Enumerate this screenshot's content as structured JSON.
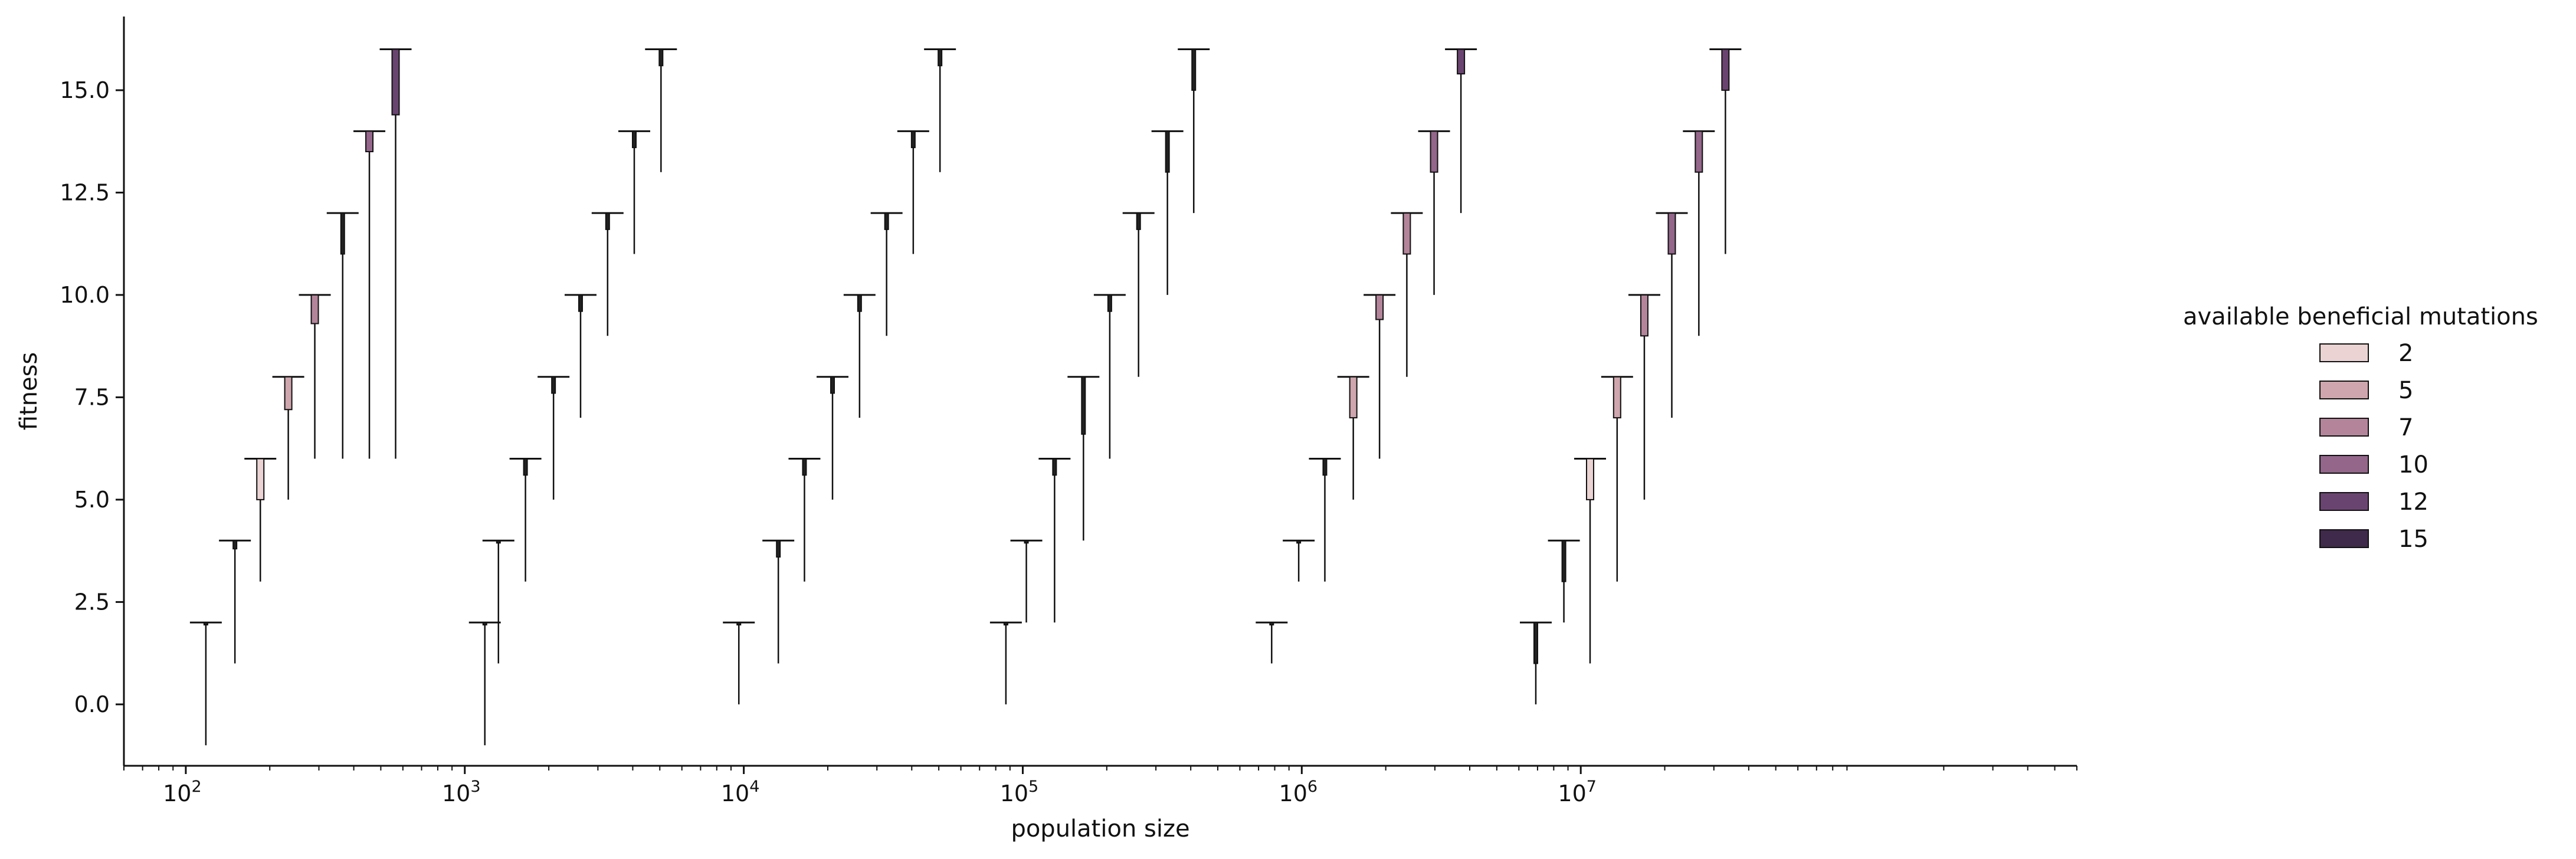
{
  "chart_data": {
    "type": "violin",
    "xlabel": "population size",
    "ylabel": "fitness",
    "xscale": "log",
    "xlim": [
      60,
      600000000
    ],
    "ylim": [
      -1.5,
      16.8
    ],
    "x_tick_labels": [
      {
        "base": "10",
        "exp": "2"
      },
      {
        "base": "10",
        "exp": "3"
      },
      {
        "base": "10",
        "exp": "4"
      },
      {
        "base": "10",
        "exp": "5"
      },
      {
        "base": "10",
        "exp": "6"
      },
      {
        "base": "10",
        "exp": "7"
      }
    ],
    "x_ticks": [
      100,
      1000,
      10000,
      100000,
      1000000,
      10000000
    ],
    "y_ticks": [
      0.0,
      2.5,
      5.0,
      7.5,
      10.0,
      12.5,
      15.0
    ],
    "y_tick_labels": [
      "0.0",
      "2.5",
      "5.0",
      "7.5",
      "10.0",
      "12.5",
      "15.0"
    ],
    "grid": false,
    "legend": {
      "title": "available beneficial mutations",
      "placement": "right",
      "entries": [
        {
          "label": "2",
          "color": "#ead3d2"
        },
        {
          "label": "5",
          "color": "#cfa6ad"
        },
        {
          "label": "7",
          "color": "#b4859a"
        },
        {
          "label": "10",
          "color": "#93668a"
        },
        {
          "label": "12",
          "color": "#6a4470"
        },
        {
          "label": "15",
          "color": "#3f2a4b"
        }
      ]
    },
    "groups": [
      {
        "violins": [
          {
            "x": 118,
            "max": 2,
            "min": -1,
            "box": [
              2,
              2
            ]
          },
          {
            "x": 150,
            "max": 4,
            "min": 1,
            "box": [
              3.8,
              4
            ]
          },
          {
            "x": 185,
            "max": 6,
            "min": 3,
            "box": [
              5,
              6
            ],
            "color": "#ead3d2"
          },
          {
            "x": 233,
            "max": 8,
            "min": 5,
            "box": [
              7.2,
              8
            ],
            "color": "#cfa6ad"
          },
          {
            "x": 290,
            "max": 10,
            "min": 6,
            "box": [
              9.3,
              10
            ],
            "color": "#b4859a"
          },
          {
            "x": 365,
            "max": 12,
            "min": 6,
            "box": [
              11,
              12
            ]
          },
          {
            "x": 455,
            "max": 14,
            "min": 6,
            "box": [
              13.5,
              14
            ],
            "color": "#93668a"
          },
          {
            "x": 565,
            "max": 16,
            "min": 6,
            "box": [
              14.4,
              16
            ],
            "color": "#6a4470"
          }
        ]
      },
      {
        "violins": [
          {
            "x": 1180,
            "max": 2,
            "min": -1,
            "box": [
              2,
              2
            ]
          },
          {
            "x": 1320,
            "max": 4,
            "min": 1,
            "box": [
              4,
              4
            ]
          },
          {
            "x": 1650,
            "max": 6,
            "min": 3,
            "box": [
              5.6,
              6
            ]
          },
          {
            "x": 2080,
            "max": 8,
            "min": 5,
            "box": [
              7.6,
              8
            ]
          },
          {
            "x": 2600,
            "max": 10,
            "min": 7,
            "box": [
              9.6,
              10
            ]
          },
          {
            "x": 3250,
            "max": 12,
            "min": 9,
            "box": [
              11.6,
              12
            ]
          },
          {
            "x": 4050,
            "max": 14,
            "min": 11,
            "box": [
              13.6,
              14
            ]
          },
          {
            "x": 5050,
            "max": 16,
            "min": 13,
            "box": [
              15.6,
              16
            ]
          }
        ]
      },
      {
        "violins": [
          {
            "x": 9600,
            "max": 2,
            "min": 0,
            "box": [
              2,
              2
            ]
          },
          {
            "x": 13300,
            "max": 4,
            "min": 1,
            "box": [
              3.6,
              4
            ]
          },
          {
            "x": 16500,
            "max": 6,
            "min": 3,
            "box": [
              5.6,
              6
            ]
          },
          {
            "x": 20800,
            "max": 8,
            "min": 5,
            "box": [
              7.6,
              8
            ]
          },
          {
            "x": 26000,
            "max": 10,
            "min": 7,
            "box": [
              9.6,
              10
            ]
          },
          {
            "x": 32500,
            "max": 12,
            "min": 9,
            "box": [
              11.6,
              12
            ]
          },
          {
            "x": 40500,
            "max": 14,
            "min": 11,
            "box": [
              13.6,
              14
            ]
          },
          {
            "x": 50500,
            "max": 16,
            "min": 13,
            "box": [
              15.6,
              16
            ]
          }
        ]
      },
      {
        "violins": [
          {
            "x": 87000,
            "max": 2,
            "min": 0,
            "box": [
              2,
              2
            ]
          },
          {
            "x": 103000,
            "max": 4,
            "min": 2,
            "box": [
              4,
              4
            ]
          },
          {
            "x": 130000,
            "max": 6,
            "min": 2,
            "box": [
              5.6,
              6
            ]
          },
          {
            "x": 165000,
            "max": 8,
            "min": 4,
            "box": [
              6.6,
              8
            ]
          },
          {
            "x": 205000,
            "max": 10,
            "min": 6,
            "box": [
              9.6,
              10
            ]
          },
          {
            "x": 260000,
            "max": 12,
            "min": 8,
            "box": [
              11.6,
              12
            ]
          },
          {
            "x": 330000,
            "max": 14,
            "min": 10,
            "box": [
              13,
              14
            ]
          },
          {
            "x": 410000,
            "max": 16,
            "min": 12,
            "box": [
              15,
              16
            ]
          }
        ]
      },
      {
        "violins": [
          {
            "x": 780000,
            "max": 2,
            "min": 1,
            "box": [
              2,
              2
            ]
          },
          {
            "x": 975000,
            "max": 4,
            "min": 3,
            "box": [
              4,
              4
            ]
          },
          {
            "x": 1210000,
            "max": 6,
            "min": 3,
            "box": [
              5.6,
              6
            ]
          },
          {
            "x": 1530000,
            "max": 8,
            "min": 5,
            "box": [
              7,
              8
            ],
            "color": "#cfa6ad"
          },
          {
            "x": 1900000,
            "max": 10,
            "min": 6,
            "box": [
              9.4,
              10
            ],
            "color": "#b4859a"
          },
          {
            "x": 2380000,
            "max": 12,
            "min": 8,
            "box": [
              11,
              12
            ],
            "color": "#b4859a"
          },
          {
            "x": 2980000,
            "max": 14,
            "min": 10,
            "box": [
              13,
              14
            ],
            "color": "#93668a"
          },
          {
            "x": 3720000,
            "max": 16,
            "min": 12,
            "box": [
              15.4,
              16
            ],
            "color": "#6a4470"
          }
        ]
      },
      {
        "violins": [
          {
            "x": 6900000,
            "max": 2,
            "min": 0,
            "box": [
              1,
              2
            ]
          },
          {
            "x": 8700000,
            "max": 4,
            "min": 2,
            "box": [
              3,
              4
            ]
          },
          {
            "x": 10800000,
            "max": 6,
            "min": 1,
            "box": [
              5,
              6
            ],
            "color": "#ead3d2"
          },
          {
            "x": 13500000,
            "max": 8,
            "min": 3,
            "box": [
              7,
              8
            ],
            "color": "#cfa6ad"
          },
          {
            "x": 16900000,
            "max": 10,
            "min": 5,
            "box": [
              9,
              10
            ],
            "color": "#b4859a"
          },
          {
            "x": 21200000,
            "max": 12,
            "min": 7,
            "box": [
              11,
              12
            ],
            "color": "#93668a"
          },
          {
            "x": 26500000,
            "max": 14,
            "min": 9,
            "box": [
              13,
              14
            ],
            "color": "#93668a"
          },
          {
            "x": 33000000,
            "max": 16,
            "min": 11,
            "box": [
              15,
              16
            ],
            "color": "#6a4470"
          }
        ]
      }
    ]
  }
}
